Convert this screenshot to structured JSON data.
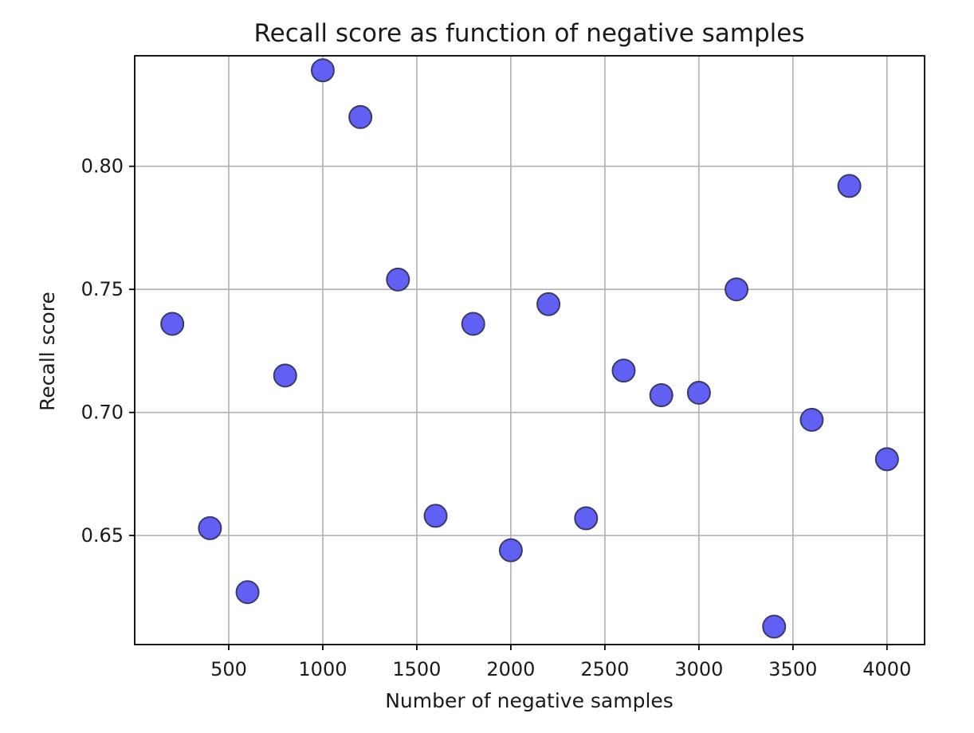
{
  "chart_data": {
    "type": "scatter",
    "title": "Recall score as function of negative samples",
    "xlabel": "Number of negative samples",
    "ylabel": "Recall score",
    "xlim": [
      0,
      4200
    ],
    "ylim": [
      0.6057,
      0.8449
    ],
    "xticks": [
      500,
      1000,
      1500,
      2000,
      2500,
      3000,
      3500,
      4000
    ],
    "xtick_labels": [
      "500",
      "1000",
      "1500",
      "2000",
      "2500",
      "3000",
      "3500",
      "4000"
    ],
    "yticks": [
      0.65,
      0.7,
      0.75,
      0.8
    ],
    "ytick_labels": [
      "0.65",
      "0.70",
      "0.75",
      "0.80"
    ],
    "grid": true,
    "marker_color": "#6060f5",
    "marker_edge_color": "#3a3a6a",
    "x": [
      200,
      400,
      600,
      800,
      1000,
      1200,
      1400,
      1600,
      1800,
      2000,
      2200,
      2400,
      2600,
      2800,
      3000,
      3200,
      3400,
      3600,
      3800,
      4000
    ],
    "y": [
      0.736,
      0.653,
      0.627,
      0.715,
      0.839,
      0.82,
      0.754,
      0.658,
      0.736,
      0.644,
      0.744,
      0.657,
      0.717,
      0.707,
      0.708,
      0.75,
      0.613,
      0.697,
      0.792,
      0.681
    ]
  }
}
